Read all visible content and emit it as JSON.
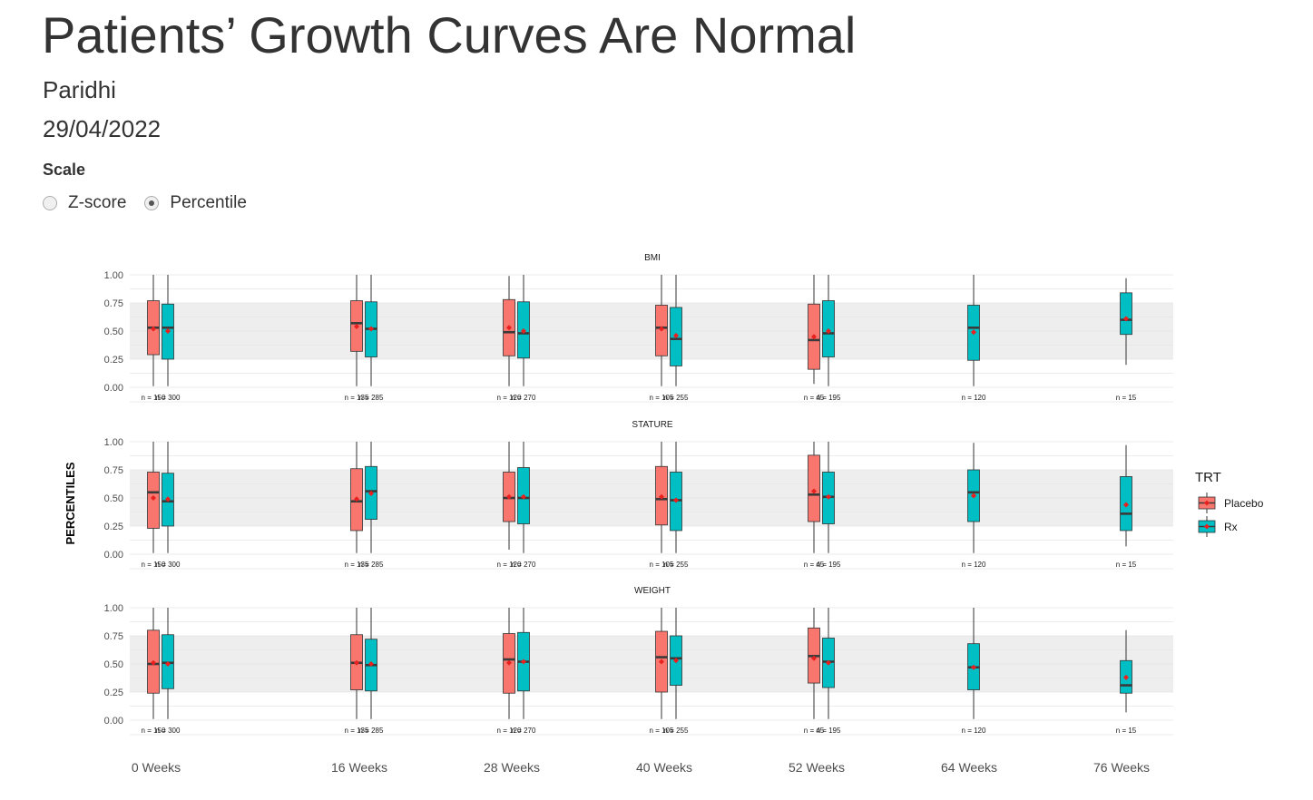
{
  "header": {
    "title": "Patients’ Growth Curves Are Normal",
    "author": "Paridhi",
    "date": "29/04/2022"
  },
  "scale_control": {
    "label": "Scale",
    "options": [
      {
        "label": "Z-score",
        "selected": false
      },
      {
        "label": "Percentile",
        "selected": true
      }
    ]
  },
  "chart_data": {
    "type": "boxplot",
    "ylabel": "PERCENTILES",
    "ylim": [
      0,
      1
    ],
    "yticks": [
      "0.00",
      "0.25",
      "0.50",
      "0.75",
      "1.00"
    ],
    "reference_band": [
      0.25,
      0.75
    ],
    "reference_band_color": "#eeeeee",
    "legend": {
      "title": "TRT",
      "position": "right",
      "items": [
        {
          "name": "Placebo",
          "color": "#f8766d"
        },
        {
          "name": "Rx",
          "color": "#00bfc4"
        }
      ]
    },
    "mean_marker_color": "#e8201f",
    "categories": [
      "0 Weeks",
      "16 Weeks",
      "28 Weeks",
      "40 Weeks",
      "52 Weeks",
      "64 Weeks",
      "76 Weeks"
    ],
    "panels": [
      {
        "name": "BMI",
        "boxes": [
          {
            "visit": "0 Weeks",
            "trt": "Placebo",
            "min": 0.01,
            "q1": 0.29,
            "median": 0.53,
            "q3": 0.77,
            "max": 1.0,
            "mean": 0.52,
            "n": "n = 150"
          },
          {
            "visit": "0 Weeks",
            "trt": "Rx",
            "min": 0.01,
            "q1": 0.25,
            "median": 0.53,
            "q3": 0.74,
            "max": 1.0,
            "mean": 0.5,
            "n": "n = 300"
          },
          {
            "visit": "16 Weeks",
            "trt": "Placebo",
            "min": 0.01,
            "q1": 0.32,
            "median": 0.57,
            "q3": 0.77,
            "max": 1.0,
            "mean": 0.54,
            "n": "n = 135"
          },
          {
            "visit": "16 Weeks",
            "trt": "Rx",
            "min": 0.01,
            "q1": 0.27,
            "median": 0.52,
            "q3": 0.76,
            "max": 1.0,
            "mean": 0.52,
            "n": "n = 285"
          },
          {
            "visit": "28 Weeks",
            "trt": "Placebo",
            "min": 0.01,
            "q1": 0.28,
            "median": 0.49,
            "q3": 0.78,
            "max": 0.99,
            "mean": 0.53,
            "n": "n = 120"
          },
          {
            "visit": "28 Weeks",
            "trt": "Rx",
            "min": 0.01,
            "q1": 0.26,
            "median": 0.48,
            "q3": 0.76,
            "max": 1.0,
            "mean": 0.5,
            "n": "n = 270"
          },
          {
            "visit": "40 Weeks",
            "trt": "Placebo",
            "min": 0.01,
            "q1": 0.28,
            "median": 0.53,
            "q3": 0.73,
            "max": 1.0,
            "mean": 0.52,
            "n": "n = 105"
          },
          {
            "visit": "40 Weeks",
            "trt": "Rx",
            "min": 0.01,
            "q1": 0.19,
            "median": 0.43,
            "q3": 0.71,
            "max": 1.0,
            "mean": 0.46,
            "n": "n = 255"
          },
          {
            "visit": "52 Weeks",
            "trt": "Placebo",
            "min": 0.03,
            "q1": 0.16,
            "median": 0.42,
            "q3": 0.74,
            "max": 1.0,
            "mean": 0.45,
            "n": "n = 45"
          },
          {
            "visit": "52 Weeks",
            "trt": "Rx",
            "min": 0.01,
            "q1": 0.27,
            "median": 0.48,
            "q3": 0.77,
            "max": 1.0,
            "mean": 0.5,
            "n": "n = 195"
          },
          {
            "visit": "64 Weeks",
            "trt": "Rx",
            "min": 0.01,
            "q1": 0.24,
            "median": 0.53,
            "q3": 0.73,
            "max": 1.0,
            "mean": 0.49,
            "n": "n = 120"
          },
          {
            "visit": "76 Weeks",
            "trt": "Rx",
            "min": 0.2,
            "q1": 0.47,
            "median": 0.6,
            "q3": 0.84,
            "max": 0.97,
            "mean": 0.61,
            "n": "n = 15"
          }
        ]
      },
      {
        "name": "STATURE",
        "boxes": [
          {
            "visit": "0 Weeks",
            "trt": "Placebo",
            "min": 0.01,
            "q1": 0.23,
            "median": 0.55,
            "q3": 0.73,
            "max": 1.0,
            "mean": 0.5,
            "n": "n = 150"
          },
          {
            "visit": "0 Weeks",
            "trt": "Rx",
            "min": 0.01,
            "q1": 0.25,
            "median": 0.47,
            "q3": 0.72,
            "max": 1.0,
            "mean": 0.49,
            "n": "n = 300"
          },
          {
            "visit": "16 Weeks",
            "trt": "Placebo",
            "min": 0.01,
            "q1": 0.21,
            "median": 0.47,
            "q3": 0.76,
            "max": 1.0,
            "mean": 0.49,
            "n": "n = 135"
          },
          {
            "visit": "16 Weeks",
            "trt": "Rx",
            "min": 0.01,
            "q1": 0.31,
            "median": 0.56,
            "q3": 0.78,
            "max": 1.0,
            "mean": 0.54,
            "n": "n = 285"
          },
          {
            "visit": "28 Weeks",
            "trt": "Placebo",
            "min": 0.04,
            "q1": 0.29,
            "median": 0.5,
            "q3": 0.73,
            "max": 1.0,
            "mean": 0.51,
            "n": "n = 120"
          },
          {
            "visit": "28 Weeks",
            "trt": "Rx",
            "min": 0.01,
            "q1": 0.27,
            "median": 0.5,
            "q3": 0.77,
            "max": 1.0,
            "mean": 0.51,
            "n": "n = 270"
          },
          {
            "visit": "40 Weeks",
            "trt": "Placebo",
            "min": 0.01,
            "q1": 0.26,
            "median": 0.49,
            "q3": 0.78,
            "max": 1.0,
            "mean": 0.51,
            "n": "n = 105"
          },
          {
            "visit": "40 Weeks",
            "trt": "Rx",
            "min": 0.01,
            "q1": 0.21,
            "median": 0.48,
            "q3": 0.73,
            "max": 1.0,
            "mean": 0.48,
            "n": "n = 255"
          },
          {
            "visit": "52 Weeks",
            "trt": "Placebo",
            "min": 0.01,
            "q1": 0.29,
            "median": 0.53,
            "q3": 0.88,
            "max": 1.0,
            "mean": 0.56,
            "n": "n = 45"
          },
          {
            "visit": "52 Weeks",
            "trt": "Rx",
            "min": 0.01,
            "q1": 0.27,
            "median": 0.51,
            "q3": 0.73,
            "max": 1.0,
            "mean": 0.51,
            "n": "n = 195"
          },
          {
            "visit": "64 Weeks",
            "trt": "Rx",
            "min": 0.01,
            "q1": 0.29,
            "median": 0.55,
            "q3": 0.75,
            "max": 0.99,
            "mean": 0.52,
            "n": "n = 120"
          },
          {
            "visit": "76 Weeks",
            "trt": "Rx",
            "min": 0.07,
            "q1": 0.21,
            "median": 0.36,
            "q3": 0.69,
            "max": 0.97,
            "mean": 0.44,
            "n": "n = 15"
          }
        ]
      },
      {
        "name": "WEIGHT",
        "boxes": [
          {
            "visit": "0 Weeks",
            "trt": "Placebo",
            "min": 0.01,
            "q1": 0.24,
            "median": 0.5,
            "q3": 0.8,
            "max": 1.0,
            "mean": 0.51,
            "n": "n = 150"
          },
          {
            "visit": "0 Weeks",
            "trt": "Rx",
            "min": 0.01,
            "q1": 0.28,
            "median": 0.51,
            "q3": 0.76,
            "max": 1.0,
            "mean": 0.5,
            "n": "n = 300"
          },
          {
            "visit": "16 Weeks",
            "trt": "Placebo",
            "min": 0.01,
            "q1": 0.27,
            "median": 0.51,
            "q3": 0.76,
            "max": 1.0,
            "mean": 0.51,
            "n": "n = 135"
          },
          {
            "visit": "16 Weeks",
            "trt": "Rx",
            "min": 0.01,
            "q1": 0.26,
            "median": 0.49,
            "q3": 0.72,
            "max": 1.0,
            "mean": 0.5,
            "n": "n = 285"
          },
          {
            "visit": "28 Weeks",
            "trt": "Placebo",
            "min": 0.01,
            "q1": 0.24,
            "median": 0.54,
            "q3": 0.77,
            "max": 1.0,
            "mean": 0.51,
            "n": "n = 120"
          },
          {
            "visit": "28 Weeks",
            "trt": "Rx",
            "min": 0.01,
            "q1": 0.26,
            "median": 0.52,
            "q3": 0.78,
            "max": 1.0,
            "mean": 0.52,
            "n": "n = 270"
          },
          {
            "visit": "40 Weeks",
            "trt": "Placebo",
            "min": 0.01,
            "q1": 0.25,
            "median": 0.56,
            "q3": 0.79,
            "max": 1.0,
            "mean": 0.52,
            "n": "n = 105"
          },
          {
            "visit": "40 Weeks",
            "trt": "Rx",
            "min": 0.01,
            "q1": 0.31,
            "median": 0.55,
            "q3": 0.75,
            "max": 1.0,
            "mean": 0.53,
            "n": "n = 255"
          },
          {
            "visit": "52 Weeks",
            "trt": "Placebo",
            "min": 0.01,
            "q1": 0.33,
            "median": 0.57,
            "q3": 0.82,
            "max": 1.0,
            "mean": 0.55,
            "n": "n = 45"
          },
          {
            "visit": "52 Weeks",
            "trt": "Rx",
            "min": 0.01,
            "q1": 0.29,
            "median": 0.52,
            "q3": 0.73,
            "max": 1.0,
            "mean": 0.51,
            "n": "n = 195"
          },
          {
            "visit": "64 Weeks",
            "trt": "Rx",
            "min": 0.01,
            "q1": 0.27,
            "median": 0.47,
            "q3": 0.68,
            "max": 1.0,
            "mean": 0.47,
            "n": "n = 120"
          },
          {
            "visit": "76 Weeks",
            "trt": "Rx",
            "min": 0.07,
            "q1": 0.24,
            "median": 0.31,
            "q3": 0.53,
            "max": 0.8,
            "mean": 0.38,
            "n": "n = 15"
          }
        ]
      }
    ]
  }
}
